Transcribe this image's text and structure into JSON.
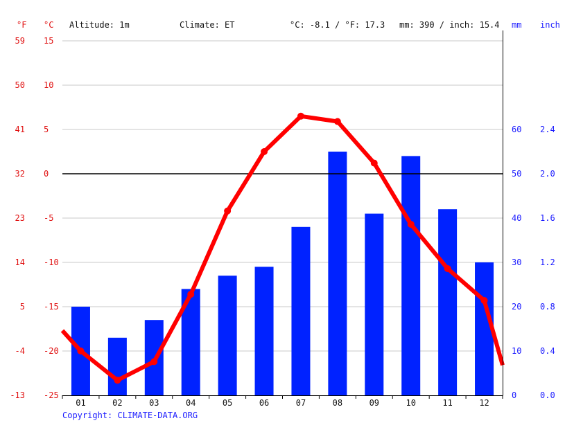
{
  "header": {
    "unit_f": "°F",
    "unit_c": "°C",
    "altitude": "Altitude: 1m",
    "climate": "Climate: ET",
    "temp_summary": "°C: -8.1 / °F: 17.3",
    "precip_summary": "mm: 390 / inch: 15.4",
    "unit_mm": "mm",
    "unit_inch": "inch"
  },
  "footer": {
    "copyright": "Copyright: CLIMATE-DATA.ORG"
  },
  "colors": {
    "temperature": "#ff0000",
    "precipitation": "#0022ff",
    "temp_axis_text": "#e01010",
    "precip_axis_text": "#1a1aff",
    "grid": "#c8c8c8",
    "zero_line": "#000000"
  },
  "chart_data": {
    "type": "bar+line",
    "categories": [
      "01",
      "02",
      "03",
      "04",
      "05",
      "06",
      "07",
      "08",
      "09",
      "10",
      "11",
      "12"
    ],
    "series": [
      {
        "kind": "bar",
        "axis": "right",
        "unit": "mm",
        "values": [
          20,
          13,
          17,
          24,
          27,
          29,
          38,
          55,
          41,
          54,
          42,
          30
        ]
      },
      {
        "kind": "line",
        "axis": "left",
        "unit": "°C",
        "values": [
          -20,
          -23.3,
          -21.2,
          -13.6,
          -4.2,
          2.5,
          6.5,
          5.9,
          1.2,
          -5.7,
          -10.7,
          -14.3
        ],
        "line_start": -17.7,
        "line_end": -21.6
      }
    ],
    "y_left_c": {
      "ylim": [
        -25,
        15
      ],
      "ticks": [
        "15",
        "10",
        "5",
        "0",
        "-5",
        "-10",
        "-15",
        "-20",
        "-25"
      ]
    },
    "y_left_f": {
      "ticks": [
        "59",
        "50",
        "41",
        "32",
        "23",
        "14",
        "5",
        "-4",
        "-13"
      ]
    },
    "y_right_mm": {
      "ylim": [
        0,
        80
      ],
      "ticks": [
        "60",
        "50",
        "40",
        "30",
        "20",
        "10",
        "0"
      ],
      "tick_values": [
        60,
        50,
        40,
        30,
        20,
        10,
        0
      ]
    },
    "y_right_inch": {
      "ticks": [
        "2.4",
        "2.0",
        "1.6",
        "1.2",
        "0.8",
        "0.4",
        "0.0"
      ]
    },
    "grid": true,
    "zero_line_value": 0
  }
}
